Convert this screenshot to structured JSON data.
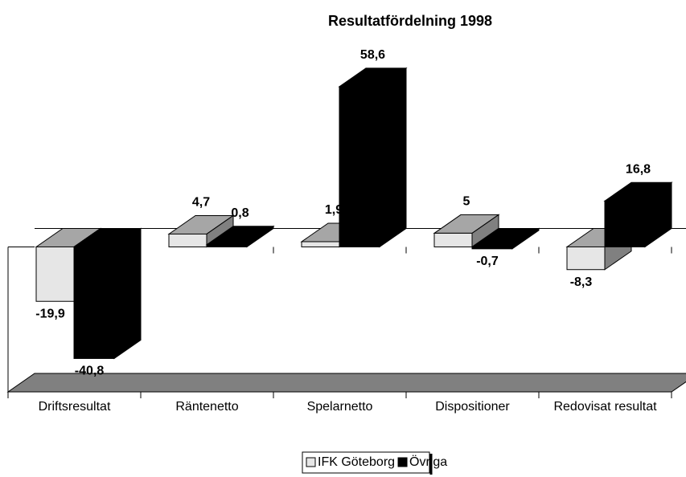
{
  "chart_data": {
    "type": "bar3d",
    "title": "Resultatfördelning 1998",
    "categories": [
      "Driftsresultat",
      "Räntenetto",
      "Spelarnetto",
      "Dispositioner",
      "Redovisat resultat"
    ],
    "series": [
      {
        "name": "IFK Göteborg",
        "color": "#e6e6e6",
        "values": [
          -19.9,
          4.7,
          1.9,
          5,
          -8.3
        ],
        "value_labels": [
          "-19,9",
          "4,7",
          "1,9",
          "5",
          "-8,3"
        ]
      },
      {
        "name": "Övriga",
        "color": "#000000",
        "values": [
          -40.8,
          0.8,
          58.6,
          -0.7,
          16.8
        ],
        "value_labels": [
          "-40,8",
          "0,8",
          "58,6",
          "-0,7",
          "16,8"
        ]
      }
    ],
    "ylim": [
      -53,
      70
    ],
    "legend": "bottom"
  }
}
